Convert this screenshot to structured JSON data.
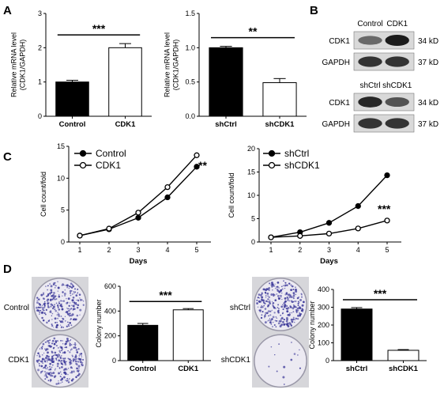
{
  "panels": {
    "A": "A",
    "B": "B",
    "C": "C",
    "D": "D"
  },
  "chart_data": [
    {
      "id": "A1",
      "type": "bar",
      "categories": [
        "Control",
        "CDK1"
      ],
      "values": [
        1.0,
        2.0
      ],
      "errors": [
        0.05,
        0.12
      ],
      "ylabel": "Relative mRNA level\n(CDK1/GAPDH)",
      "ylim": [
        0,
        3
      ],
      "yticks": [
        "0",
        "1",
        "2",
        "3"
      ],
      "significance": "***",
      "fills": [
        "#000000",
        "#ffffff"
      ]
    },
    {
      "id": "A2",
      "type": "bar",
      "categories": [
        "shCtrl",
        "shCDK1"
      ],
      "values": [
        1.0,
        0.49
      ],
      "errors": [
        0.02,
        0.06
      ],
      "ylabel": "Relative mRNA level\n(CDK1/GAPDH)",
      "ylim": [
        0,
        1.5
      ],
      "yticks": [
        "0.0",
        "0.5",
        "1.0",
        "1.5"
      ],
      "significance": "**",
      "fills": [
        "#000000",
        "#ffffff"
      ]
    },
    {
      "id": "C1",
      "type": "line",
      "x": [
        1,
        2,
        3,
        4,
        5
      ],
      "xticks": [
        "1",
        "2",
        "3",
        "4",
        "5"
      ],
      "xlabel": "Days",
      "ylabel": "Cell count/fold",
      "ylim": [
        0,
        15
      ],
      "yticks": [
        "0",
        "5",
        "10",
        "15"
      ],
      "series": [
        {
          "name": "Control",
          "values": [
            1.0,
            2.0,
            3.8,
            7.0,
            11.8
          ],
          "errors": [
            0.1,
            0.1,
            0.15,
            0.2,
            0.3
          ],
          "marker": "filled"
        },
        {
          "name": "CDK1",
          "values": [
            1.0,
            2.1,
            4.6,
            8.6,
            13.6
          ],
          "errors": [
            0.1,
            0.1,
            0.15,
            0.2,
            0.3
          ],
          "marker": "open"
        }
      ],
      "significance": "**",
      "legend": "top-left"
    },
    {
      "id": "C2",
      "type": "line",
      "x": [
        1,
        2,
        3,
        4,
        5
      ],
      "xticks": [
        "1",
        "2",
        "3",
        "4",
        "5"
      ],
      "xlabel": "Days",
      "ylabel": "Cell count/fold",
      "ylim": [
        0,
        20
      ],
      "yticks": [
        "0",
        "5",
        "10",
        "15",
        "20"
      ],
      "series": [
        {
          "name": "shCtrl",
          "values": [
            1.0,
            2.1,
            4.1,
            7.7,
            14.3
          ],
          "errors": [
            0.1,
            0.1,
            0.2,
            0.3,
            0.5
          ],
          "marker": "filled"
        },
        {
          "name": "shCDK1",
          "values": [
            1.0,
            1.3,
            1.8,
            2.9,
            4.6
          ],
          "errors": [
            0.1,
            0.1,
            0.1,
            0.15,
            0.2
          ],
          "marker": "open"
        }
      ],
      "significance": "***",
      "legend": "top-left"
    },
    {
      "id": "D1",
      "type": "bar",
      "categories": [
        "Control",
        "CDK1"
      ],
      "values": [
        285,
        410
      ],
      "errors": [
        15,
        10
      ],
      "ylabel": "Colony number",
      "ylim": [
        0,
        600
      ],
      "yticks": [
        "0",
        "200",
        "400",
        "600"
      ],
      "significance": "***",
      "fills": [
        "#000000",
        "#ffffff"
      ]
    },
    {
      "id": "D2",
      "type": "bar",
      "categories": [
        "shCtrl",
        "shCDK1"
      ],
      "values": [
        290,
        58
      ],
      "errors": [
        8,
        4
      ],
      "ylabel": "Colony number",
      "ylim": [
        0,
        400
      ],
      "yticks": [
        "0",
        "100",
        "200",
        "300",
        "400"
      ],
      "significance": "***",
      "fills": [
        "#000000",
        "#ffffff"
      ]
    }
  ],
  "blots": {
    "top": {
      "columns": [
        "Control",
        "CDK1"
      ],
      "rows": [
        {
          "label": "CDK1",
          "size": "34 kD"
        },
        {
          "label": "GAPDH",
          "size": "37 kD"
        }
      ]
    },
    "bottom": {
      "columns": [
        "shCtrl",
        "shCDK1"
      ],
      "rows": [
        {
          "label": "CDK1",
          "size": "34 kD"
        },
        {
          "label": "GAPDH",
          "size": "37 kD"
        }
      ]
    }
  },
  "colony_images": {
    "left": {
      "labels": [
        "Control",
        "CDK1"
      ]
    },
    "right": {
      "labels": [
        "shCtrl",
        "shCDK1"
      ]
    }
  }
}
